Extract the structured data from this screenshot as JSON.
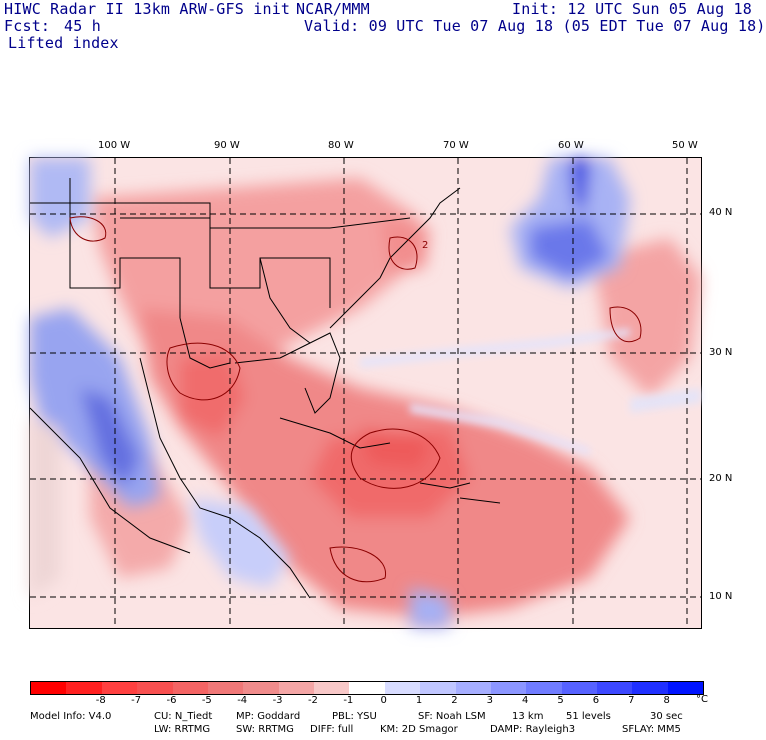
{
  "header": {
    "model_title": "HIWC Radar II 13km ARW-GFS init",
    "org": "NCAR/MMM",
    "init": "Init: 12 UTC Sun 05 Aug 18",
    "fcst_label": "Fcst:",
    "fcst_value": "45 h",
    "valid": "Valid: 09 UTC Tue 07 Aug 18 (05 EDT Tue 07 Aug 18)",
    "field": "Lifted index"
  },
  "map": {
    "longitude_labels": [
      "100 W",
      "90 W",
      "80 W",
      "70 W",
      "60 W",
      "50 W"
    ],
    "latitude_labels": [
      "40 N",
      "30 N",
      "20 N",
      "10 N"
    ],
    "contour_label": "2",
    "colors": {
      "negative": "#f08080",
      "strong_negative": "#ff3030",
      "positive": "#a0a8ff",
      "strong_positive": "#3c46e6",
      "neutral": "#fdeeee",
      "border": "#000000"
    }
  },
  "colorbar": {
    "ticks": [
      "-8",
      "-7",
      "-6",
      "-5",
      "-4",
      "-3",
      "-2",
      "-1",
      "0",
      "1",
      "2",
      "3",
      "4",
      "5",
      "6",
      "7",
      "8"
    ],
    "unit": "°C",
    "colors": [
      "#ff0000",
      "#ff2020",
      "#ff4040",
      "#f85050",
      "#f46464",
      "#f07878",
      "#f08c8c",
      "#f4a6a6",
      "#f8c8c8",
      "#ffffff",
      "#d8dcff",
      "#c0c6ff",
      "#a6aeff",
      "#8c96ff",
      "#707cff",
      "#5662ff",
      "#3c48ff",
      "#2030ff",
      "#0014ff"
    ]
  },
  "footer": {
    "line1": [
      "Model Info: V4.0",
      "CU: N_Tiedt",
      "MP: Goddard",
      "PBL: YSU",
      "SF: Noah LSM",
      "13 km",
      "51 levels",
      "30 sec"
    ],
    "line2": [
      "LW: RRTMG",
      "SW: RRTMG",
      "DIFF: full",
      "KM: 2D Smagor",
      "DAMP: Rayleigh3",
      "SFLAY: MM5"
    ]
  }
}
